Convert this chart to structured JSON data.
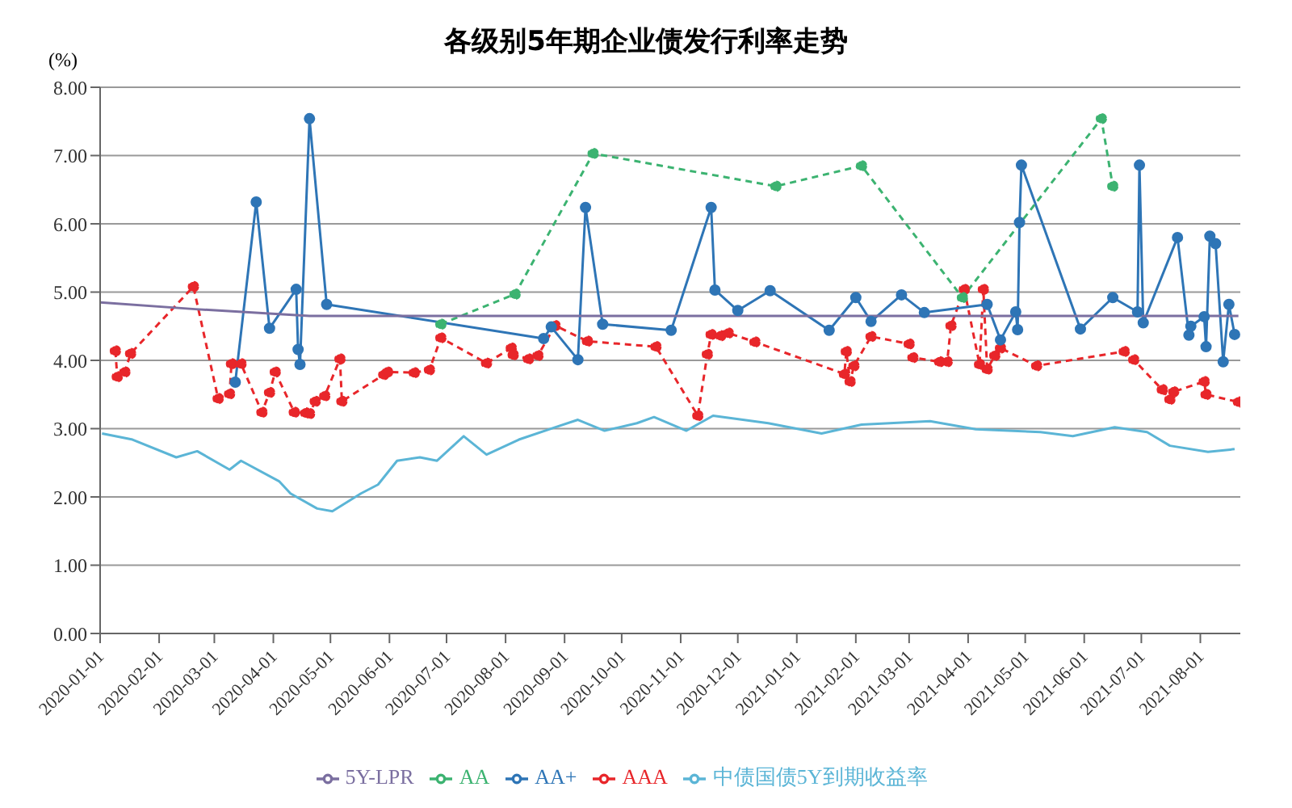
{
  "chart_data": {
    "type": "line",
    "title": "各级别5年期企业债发行利率走势",
    "ylabel": "(%)",
    "xlim": [
      "2020-01-01",
      "2021-08-22"
    ],
    "xticks": [
      "2020-01-01",
      "2020-02-01",
      "2020-03-01",
      "2020-04-01",
      "2020-05-01",
      "2020-06-01",
      "2020-07-01",
      "2020-08-01",
      "2020-09-01",
      "2020-10-01",
      "2020-11-01",
      "2020-12-01",
      "2021-01-01",
      "2021-02-01",
      "2021-03-01",
      "2021-04-01",
      "2021-05-01",
      "2021-06-01",
      "2021-07-01",
      "2021-08-01"
    ],
    "ylim": [
      0,
      8
    ],
    "yticks": [
      {
        "value": 0,
        "label": "0.00"
      },
      {
        "value": 1,
        "label": "1.00"
      },
      {
        "value": 2,
        "label": "2.00"
      },
      {
        "value": 3,
        "label": "3.00"
      },
      {
        "value": 4,
        "label": "4.00"
      },
      {
        "value": 5,
        "label": "5.00"
      },
      {
        "value": 6,
        "label": "6.00"
      },
      {
        "value": 7,
        "label": "7.00"
      },
      {
        "value": 8,
        "label": "8.00"
      }
    ],
    "grid": "y",
    "legend": "bottom",
    "series": [
      {
        "name": "AAA",
        "color": "#e8262a",
        "marker": "circle",
        "line_style": "dashed",
        "x": [
          "2020-01-09",
          "2020-01-10",
          "2020-01-14",
          "2020-01-17",
          "2020-02-19",
          "2020-03-03",
          "2020-03-09",
          "2020-03-10",
          "2020-03-15",
          "2020-03-26",
          "2020-03-30",
          "2020-04-02",
          "2020-04-12",
          "2020-04-18",
          "2020-04-20",
          "2020-04-23",
          "2020-04-28",
          "2020-05-06",
          "2020-05-07",
          "2020-05-29",
          "2020-05-31",
          "2020-06-14",
          "2020-06-22",
          "2020-06-28",
          "2020-07-22",
          "2020-08-04",
          "2020-08-05",
          "2020-08-13",
          "2020-08-18",
          "2020-08-27",
          "2020-09-13",
          "2020-10-19",
          "2020-11-10",
          "2020-11-15",
          "2020-11-17",
          "2020-11-22",
          "2020-11-26",
          "2020-12-10",
          "2021-01-26",
          "2021-01-27",
          "2021-01-29",
          "2021-01-31",
          "2021-02-09",
          "2021-03-01",
          "2021-03-03",
          "2021-03-17",
          "2021-03-21",
          "2021-03-23",
          "2021-03-30",
          "2021-04-07",
          "2021-04-09",
          "2021-04-11",
          "2021-04-15",
          "2021-04-18",
          "2021-05-07",
          "2021-06-22",
          "2021-06-27",
          "2021-07-12",
          "2021-07-16",
          "2021-07-18",
          "2021-08-03",
          "2021-08-04",
          "2021-08-21"
        ],
        "values": [
          4.14,
          3.76,
          3.83,
          4.1,
          5.08,
          3.44,
          3.51,
          3.95,
          3.95,
          3.24,
          3.53,
          3.83,
          3.24,
          3.23,
          3.22,
          3.4,
          3.48,
          4.02,
          3.4,
          3.79,
          3.83,
          3.82,
          3.86,
          4.33,
          3.96,
          4.18,
          4.08,
          4.02,
          4.07,
          4.51,
          4.28,
          4.2,
          3.19,
          4.09,
          4.38,
          4.36,
          4.4,
          4.27,
          3.8,
          4.13,
          3.69,
          3.92,
          4.35,
          4.24,
          4.04,
          3.98,
          3.98,
          4.51,
          5.04,
          3.94,
          5.04,
          3.87,
          4.07,
          4.18,
          3.92,
          4.13,
          4.01,
          3.57,
          3.43,
          3.54,
          3.69,
          3.5,
          3.39
        ]
      },
      {
        "name": "AA+",
        "color": "#2e75b6",
        "marker": "circle",
        "line_style": "solid",
        "x": [
          "2020-03-12",
          "2020-03-23",
          "2020-03-30",
          "2020-04-13",
          "2020-04-14",
          "2020-04-15",
          "2020-04-20",
          "2020-04-29",
          "2020-08-21",
          "2020-08-25",
          "2020-09-08",
          "2020-09-12",
          "2020-09-21",
          "2020-10-27",
          "2020-11-17",
          "2020-11-19",
          "2020-12-01",
          "2020-12-18",
          "2021-01-18",
          "2021-02-01",
          "2021-02-09",
          "2021-02-25",
          "2021-03-09",
          "2021-04-11",
          "2021-04-18",
          "2021-04-26",
          "2021-04-27",
          "2021-04-28",
          "2021-04-29",
          "2021-05-30",
          "2021-06-16",
          "2021-06-29",
          "2021-06-30",
          "2021-07-02",
          "2021-07-20",
          "2021-07-26",
          "2021-07-27",
          "2021-08-03",
          "2021-08-04",
          "2021-08-06",
          "2021-08-09",
          "2021-08-13",
          "2021-08-16",
          "2021-08-19"
        ],
        "values": [
          3.68,
          6.32,
          4.47,
          5.04,
          4.16,
          3.94,
          7.54,
          4.82,
          4.32,
          4.49,
          4.01,
          6.24,
          4.53,
          4.44,
          6.24,
          5.03,
          4.73,
          5.02,
          4.44,
          4.92,
          4.57,
          4.96,
          4.7,
          4.82,
          4.3,
          4.71,
          4.45,
          6.02,
          6.86,
          4.46,
          4.92,
          4.71,
          6.86,
          4.55,
          5.8,
          4.37,
          4.5,
          4.64,
          4.2,
          5.82,
          5.71,
          3.98,
          4.82,
          4.38
        ]
      },
      {
        "name": "AA",
        "color": "#3cb371",
        "marker": "circle",
        "line_style": "dashed",
        "x": [
          "2020-06-28",
          "2020-08-06",
          "2020-09-16",
          "2020-12-21",
          "2021-02-04",
          "2021-03-29",
          "2021-06-10",
          "2021-06-16"
        ],
        "values": [
          4.53,
          4.97,
          7.03,
          6.55,
          6.85,
          4.92,
          7.54,
          6.55
        ]
      },
      {
        "name": "中债国债5Y到期收益率",
        "color": "#5bb5d6",
        "marker": "none",
        "line_style": "solid",
        "x": [
          "2020-01-02",
          "2020-01-18",
          "2020-02-10",
          "2020-02-21",
          "2020-03-09",
          "2020-03-15",
          "2020-04-04",
          "2020-04-10",
          "2020-04-24",
          "2020-05-02",
          "2020-05-17",
          "2020-05-26",
          "2020-06-05",
          "2020-06-17",
          "2020-06-26",
          "2020-07-10",
          "2020-07-22",
          "2020-08-08",
          "2020-08-27",
          "2020-09-08",
          "2020-09-22",
          "2020-10-09",
          "2020-10-18",
          "2020-11-04",
          "2020-11-18",
          "2020-12-17",
          "2021-01-14",
          "2021-02-04",
          "2021-03-12",
          "2021-04-05",
          "2021-05-09",
          "2021-05-26",
          "2021-06-17",
          "2021-07-04",
          "2021-07-16",
          "2021-08-05",
          "2021-08-19"
        ],
        "values": [
          2.93,
          2.84,
          2.58,
          2.67,
          2.4,
          2.53,
          2.23,
          2.05,
          1.83,
          1.79,
          2.05,
          2.18,
          2.53,
          2.58,
          2.53,
          2.89,
          2.62,
          2.84,
          3.02,
          3.13,
          2.97,
          3.08,
          3.17,
          2.97,
          3.19,
          3.08,
          2.93,
          3.06,
          3.11,
          2.99,
          2.95,
          2.89,
          3.02,
          2.95,
          2.75,
          2.66,
          2.7
        ]
      },
      {
        "name": "5Y-LPR",
        "color": "#7b6fa0",
        "marker": "none",
        "line_style": "solid",
        "x": [
          "2020-01-01",
          "2020-02-20",
          "2020-04-20",
          "2021-08-21"
        ],
        "values": [
          4.85,
          4.75,
          4.65,
          4.65
        ]
      }
    ]
  }
}
